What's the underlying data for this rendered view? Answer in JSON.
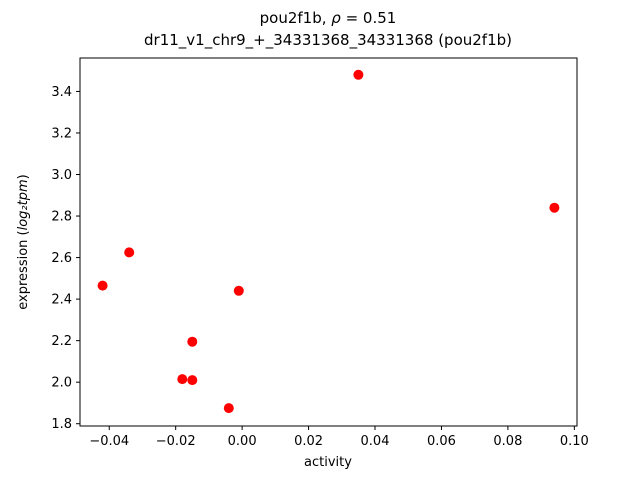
{
  "chart_data": {
    "type": "scatter",
    "title": "pou2f1b, ρ = 0.51",
    "title_parts": {
      "prefix": "pou2f1b, ",
      "rho": "ρ",
      "suffix": " = 0.51"
    },
    "subtitle": "dr11_v1_chr9_+_34331368_34331368 (pou2f1b)",
    "xlabel": "activity",
    "ylabel": "expression (log₂tpm)",
    "ylabel_parts": {
      "prefix": "expression (",
      "math": "log₂tpm",
      "suffix": ")"
    },
    "marker_color": "#ff0000",
    "marker_radius": 5.0,
    "grid": false,
    "legend": "none",
    "xlim": [
      -0.0488,
      0.1008
    ],
    "ylim": [
      1.789,
      3.561
    ],
    "xticks": [
      {
        "value": -0.04,
        "label": "−0.04"
      },
      {
        "value": -0.02,
        "label": "−0.02"
      },
      {
        "value": 0.0,
        "label": "0.00"
      },
      {
        "value": 0.02,
        "label": "0.02"
      },
      {
        "value": 0.04,
        "label": "0.04"
      },
      {
        "value": 0.06,
        "label": "0.06"
      },
      {
        "value": 0.08,
        "label": "0.08"
      },
      {
        "value": 0.1,
        "label": "0.10"
      }
    ],
    "yticks": [
      {
        "value": 1.8,
        "label": "1.8"
      },
      {
        "value": 2.0,
        "label": "2.0"
      },
      {
        "value": 2.2,
        "label": "2.2"
      },
      {
        "value": 2.4,
        "label": "2.4"
      },
      {
        "value": 2.6,
        "label": "2.6"
      },
      {
        "value": 2.8,
        "label": "2.8"
      },
      {
        "value": 3.0,
        "label": "3.0"
      },
      {
        "value": 3.2,
        "label": "3.2"
      },
      {
        "value": 3.4,
        "label": "3.4"
      }
    ],
    "points": [
      [
        -0.042,
        2.465
      ],
      [
        -0.034,
        2.625
      ],
      [
        -0.018,
        2.015
      ],
      [
        -0.015,
        2.01
      ],
      [
        -0.015,
        2.195
      ],
      [
        -0.004,
        1.875
      ],
      [
        -0.001,
        2.44
      ],
      [
        0.035,
        3.48
      ],
      [
        0.094,
        2.84
      ]
    ]
  }
}
